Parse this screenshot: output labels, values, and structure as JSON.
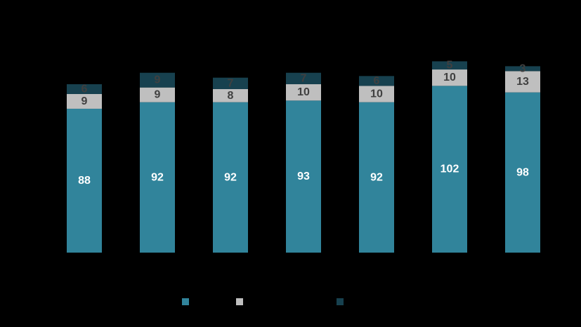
{
  "chart_data": {
    "type": "bar",
    "stacked": true,
    "categories": [
      "",
      "",
      "",
      "",
      "",
      "",
      ""
    ],
    "series": [
      {
        "color": "#31849B",
        "label_color": "#FFFFFF",
        "values": [
          88,
          92,
          92,
          93,
          92,
          102,
          98
        ]
      },
      {
        "color": "#BFBFBF",
        "label_color": "#404040",
        "values": [
          9,
          9,
          8,
          10,
          10,
          10,
          13
        ]
      },
      {
        "color": "#17414F",
        "label_color": "#404040",
        "values": [
          6,
          9,
          7,
          7,
          6,
          5,
          3
        ]
      }
    ],
    "ylim": [
      0,
      130
    ],
    "grid": false,
    "legend_position": "bottom"
  }
}
